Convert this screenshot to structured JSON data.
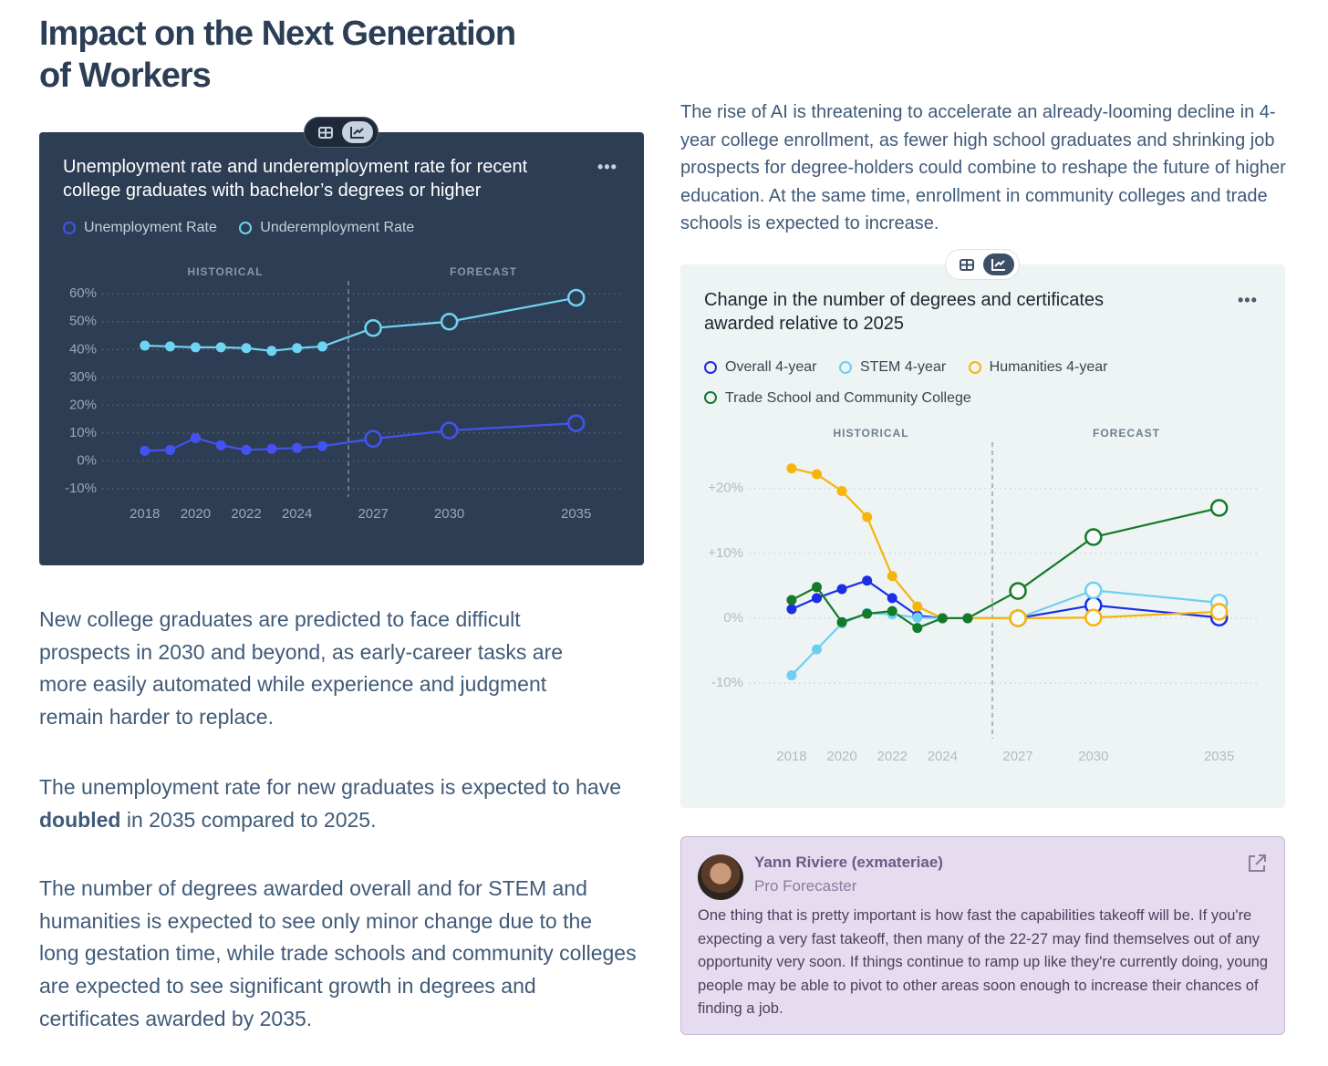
{
  "header": {
    "title": "Impact on the Next Generation of Workers"
  },
  "intro": "The rise of AI is threatening to accelerate an already-looming decline in 4-year college enrollment, as fewer high school graduates and shrinking job prospects for degree-holders could combine to reshape the future of higher education. At the same time, enrollment in community colleges and trade schools is expected to increase.",
  "paragraph_1": "New college graduates are predicted to face difficult prospects in 2030 and beyond, as early-career tasks are more easily automated while experience and judgment remain harder to replace.",
  "paragraph_2": {
    "before": "The unemployment rate for new graduates is expected to have ",
    "bold": "doubled",
    "after": " in 2035 compared to 2025."
  },
  "paragraph_3": "The number of degrees awarded overall and for STEM and humanities is expected to see only minor change due to the long gestation time, while trade schools and community colleges are expected to see significant growth in degrees and certificates awarded by 2035.",
  "chart_data": [
    {
      "type": "line",
      "title": "Unemployment rate and underemployment rate for recent college graduates with bachelor’s degrees or higher",
      "historical_label": "HISTORICAL",
      "forecast_label": "FORECAST",
      "x": [
        2018,
        2019,
        2020,
        2021,
        2022,
        2023,
        2024,
        2025,
        2027,
        2030,
        2035
      ],
      "xlim": [
        2016.5,
        2036.7
      ],
      "xticks": [
        2018,
        2020,
        2022,
        2024,
        2027,
        2030,
        2035
      ],
      "ylim": [
        -13,
        65
      ],
      "yticks": [
        {
          "value": 60,
          "label": "60%"
        },
        {
          "value": 50,
          "label": "50%"
        },
        {
          "value": 40,
          "label": "40%"
        },
        {
          "value": 30,
          "label": "30%"
        },
        {
          "value": 20,
          "label": "20%"
        },
        {
          "value": 10,
          "label": "10%"
        },
        {
          "value": 0,
          "label": "0%"
        },
        {
          "value": -10,
          "label": "-10%"
        }
      ],
      "grid": true,
      "series": [
        {
          "name": "Unemployment Rate",
          "color": "#4353f2",
          "values": [
            3.6,
            3.9,
            8.2,
            5.6,
            3.9,
            4.3,
            4.6,
            5.3,
            7.9,
            10.9,
            13.5
          ]
        },
        {
          "name": "Underemployment Rate",
          "color": "#6fd4f2",
          "values": [
            41.4,
            41.1,
            40.8,
            40.8,
            40.5,
            39.5,
            40.5,
            41.1,
            47.7,
            50,
            58.6
          ]
        }
      ]
    },
    {
      "type": "line",
      "title": "Change in the number of degrees and certificates awarded relative to 2025",
      "historical_label": "HISTORICAL",
      "forecast_label": "FORECAST",
      "x": [
        2018,
        2019,
        2020,
        2021,
        2022,
        2023,
        2024,
        2025,
        2027,
        2030,
        2035
      ],
      "xlim": [
        2015.5,
        2036.5
      ],
      "xticks": [
        2018,
        2020,
        2022,
        2024,
        2027,
        2030,
        2035
      ],
      "ylim": [
        -18,
        26
      ],
      "yticks": [
        {
          "value": 20,
          "label": "+20%"
        },
        {
          "value": 10,
          "label": "+10%"
        },
        {
          "value": 0,
          "label": "0%"
        },
        {
          "value": -10,
          "label": "-10%"
        }
      ],
      "grid": true,
      "series": [
        {
          "name": "Overall 4-year",
          "color": "#1b2ee6",
          "values": [
            1.4,
            3.1,
            4.5,
            5.8,
            3.1,
            0.4,
            0,
            0,
            0,
            2,
            0.1
          ]
        },
        {
          "name": "STEM 4-year",
          "color": "#6ecff2",
          "values": [
            -8.8,
            -4.8,
            -0.8,
            0.8,
            0.6,
            0.1,
            0,
            0,
            0,
            4.3,
            2.4
          ]
        },
        {
          "name": "Humanities 4-year",
          "color": "#f5b50a",
          "values": [
            23.1,
            22.2,
            19.6,
            15.6,
            6.5,
            1.8,
            0,
            0,
            0,
            0.1,
            1
          ]
        },
        {
          "name": "Trade School and Community College",
          "color": "#137a2a",
          "values": [
            2.8,
            4.8,
            -0.6,
            0.7,
            1.1,
            -1.5,
            0,
            0,
            4.2,
            12.5,
            17
          ]
        }
      ]
    }
  ],
  "comment": {
    "author": "Yann Riviere (exmateriae)",
    "role": "Pro Forecaster",
    "text": "One thing that is pretty important is how fast the capabilities takeoff will be. If you're expecting a very fast takeoff, then many of the 22-27 may find themselves out of any opportunity very soon. If things continue to ramp up like they're currently doing, young people may be able to pivot to other areas soon enough to increase their chances of finding a job."
  }
}
